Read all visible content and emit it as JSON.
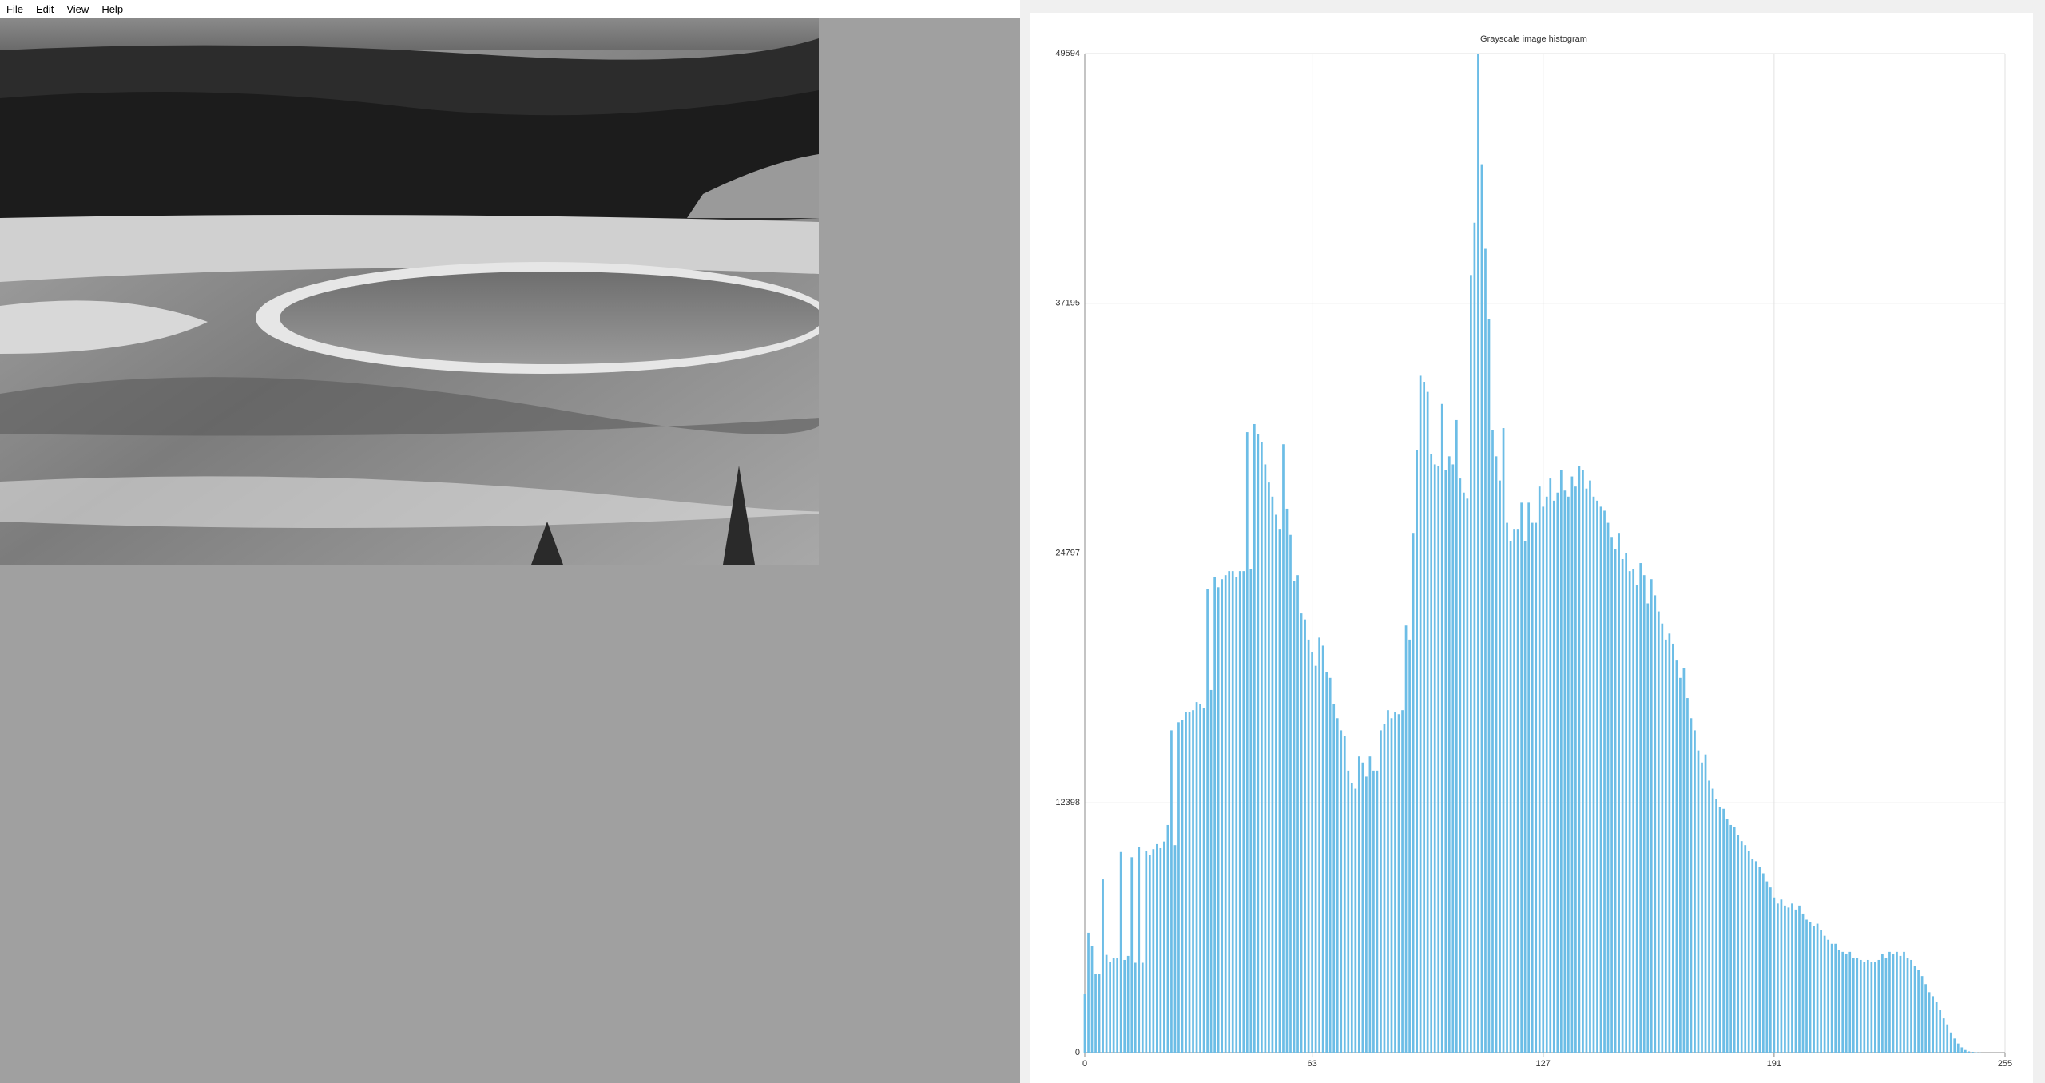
{
  "menu": [
    "File",
    "Edit",
    "View",
    "Help"
  ],
  "chart_data": {
    "type": "bar",
    "title": "Grayscale image histogram",
    "color": "#6cbde6",
    "grid": true,
    "xlim": [
      0,
      255
    ],
    "xticks": [
      0,
      63,
      127,
      191,
      255
    ],
    "ylim": [
      0,
      49594
    ],
    "yticks": [
      0,
      12398,
      24797,
      37195,
      49594
    ],
    "x": [
      0,
      1,
      2,
      3,
      4,
      5,
      6,
      7,
      8,
      9,
      10,
      11,
      12,
      13,
      14,
      15,
      16,
      17,
      18,
      19,
      20,
      21,
      22,
      23,
      24,
      25,
      26,
      27,
      28,
      29,
      30,
      31,
      32,
      33,
      34,
      35,
      36,
      37,
      38,
      39,
      40,
      41,
      42,
      43,
      44,
      45,
      46,
      47,
      48,
      49,
      50,
      51,
      52,
      53,
      54,
      55,
      56,
      57,
      58,
      59,
      60,
      61,
      62,
      63,
      64,
      65,
      66,
      67,
      68,
      69,
      70,
      71,
      72,
      73,
      74,
      75,
      76,
      77,
      78,
      79,
      80,
      81,
      82,
      83,
      84,
      85,
      86,
      87,
      88,
      89,
      90,
      91,
      92,
      93,
      94,
      95,
      96,
      97,
      98,
      99,
      100,
      101,
      102,
      103,
      104,
      105,
      106,
      107,
      108,
      109,
      110,
      111,
      112,
      113,
      114,
      115,
      116,
      117,
      118,
      119,
      120,
      121,
      122,
      123,
      124,
      125,
      126,
      127,
      128,
      129,
      130,
      131,
      132,
      133,
      134,
      135,
      136,
      137,
      138,
      139,
      140,
      141,
      142,
      143,
      144,
      145,
      146,
      147,
      148,
      149,
      150,
      151,
      152,
      153,
      154,
      155,
      156,
      157,
      158,
      159,
      160,
      161,
      162,
      163,
      164,
      165,
      166,
      167,
      168,
      169,
      170,
      171,
      172,
      173,
      174,
      175,
      176,
      177,
      178,
      179,
      180,
      181,
      182,
      183,
      184,
      185,
      186,
      187,
      188,
      189,
      190,
      191,
      192,
      193,
      194,
      195,
      196,
      197,
      198,
      199,
      200,
      201,
      202,
      203,
      204,
      205,
      206,
      207,
      208,
      209,
      210,
      211,
      212,
      213,
      214,
      215,
      216,
      217,
      218,
      219,
      220,
      221,
      222,
      223,
      224,
      225,
      226,
      227,
      228,
      229,
      230,
      231,
      232,
      233,
      234,
      235,
      236,
      237,
      238,
      239,
      240,
      241,
      242,
      243,
      244,
      245,
      246,
      247,
      248,
      249,
      250,
      251,
      252,
      253,
      254,
      255
    ],
    "values": [
      2900,
      5950,
      5300,
      3900,
      3900,
      8600,
      4850,
      4500,
      4700,
      4700,
      9960,
      4600,
      4800,
      9700,
      4460,
      10200,
      4460,
      10000,
      9800,
      10100,
      10350,
      10150,
      10480,
      11300,
      16000,
      10300,
      16400,
      16500,
      16900,
      16900,
      17000,
      17400,
      17300,
      17100,
      23000,
      18000,
      23600,
      23100,
      23500,
      23700,
      23900,
      23900,
      23600,
      23900,
      23900,
      30800,
      24000,
      31200,
      30700,
      30300,
      29200,
      28300,
      27600,
      26700,
      26000,
      30200,
      27000,
      25700,
      23400,
      23700,
      21800,
      21500,
      20500,
      19900,
      19200,
      20600,
      20200,
      18900,
      18600,
      17300,
      16600,
      16000,
      15700,
      14000,
      13400,
      13100,
      14700,
      14400,
      13700,
      14700,
      14000,
      14000,
      16000,
      16300,
      17000,
      16600,
      16900,
      16800,
      17000,
      21200,
      20500,
      25800,
      29900,
      33600,
      33300,
      32800,
      29700,
      29200,
      29100,
      32200,
      28900,
      29600,
      29200,
      31400,
      28500,
      27800,
      27500,
      38600,
      41200,
      49594,
      44100,
      39900,
      36400,
      30900,
      29600,
      28400,
      31000,
      26300,
      25400,
      26000,
      26000,
      27300,
      25400,
      27300,
      26300,
      26300,
      28100,
      27100,
      27600,
      28500,
      27400,
      27800,
      28900,
      27900,
      27600,
      28600,
      28100,
      29100,
      28900,
      28000,
      28400,
      27600,
      27400,
      27100,
      26900,
      26300,
      25600,
      25000,
      25800,
      24500,
      24800,
      23900,
      24000,
      23200,
      24300,
      23700,
      22300,
      23500,
      22700,
      21900,
      21300,
      20500,
      20800,
      20300,
      19500,
      18600,
      19100,
      17600,
      16600,
      16000,
      15000,
      14400,
      14800,
      13500,
      13100,
      12600,
      12200,
      12100,
      11600,
      11300,
      11200,
      10800,
      10500,
      10300,
      10000,
      9600,
      9500,
      9200,
      8900,
      8500,
      8200,
      7700,
      7400,
      7600,
      7300,
      7200,
      7400,
      7100,
      7300,
      6900,
      6600,
      6500,
      6300,
      6400,
      6100,
      5800,
      5600,
      5400,
      5400,
      5100,
      5000,
      4900,
      5000,
      4700,
      4700,
      4600,
      4500,
      4600,
      4500,
      4500,
      4600,
      4900,
      4700,
      5000,
      4900,
      5000,
      4800,
      5000,
      4700,
      4600,
      4300,
      4100,
      3800,
      3400,
      3000,
      2800,
      2500,
      2100,
      1700,
      1400,
      1000,
      700,
      450,
      260,
      130,
      60,
      40,
      20,
      10,
      0,
      0,
      0,
      0,
      0,
      0,
      0
    ]
  }
}
